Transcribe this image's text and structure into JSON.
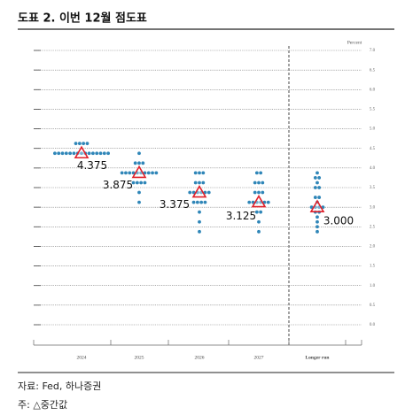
{
  "header": {
    "title": "도표 2. 이번 12월 점도표"
  },
  "chart_data": {
    "type": "dot",
    "y_label": "Percent",
    "categories": [
      "2024",
      "2025",
      "2026",
      "2027",
      "Longer run"
    ],
    "dots": [
      [
        {
          "rate": 4.625,
          "count": 4
        },
        {
          "rate": 4.375,
          "count": 15
        }
      ],
      [
        {
          "rate": 4.375,
          "count": 1
        },
        {
          "rate": 4.125,
          "count": 3
        },
        {
          "rate": 3.875,
          "count": 10
        },
        {
          "rate": 3.625,
          "count": 4
        },
        {
          "rate": 3.375,
          "count": 1
        },
        {
          "rate": 3.125,
          "count": 1
        }
      ],
      [
        {
          "rate": 3.875,
          "count": 3
        },
        {
          "rate": 3.625,
          "count": 3
        },
        {
          "rate": 3.375,
          "count": 6
        },
        {
          "rate": 3.125,
          "count": 4
        },
        {
          "rate": 2.875,
          "count": 1
        },
        {
          "rate": 2.625,
          "count": 1
        },
        {
          "rate": 2.375,
          "count": 1
        }
      ],
      [
        {
          "rate": 3.875,
          "count": 2
        },
        {
          "rate": 3.625,
          "count": 3
        },
        {
          "rate": 3.375,
          "count": 3
        },
        {
          "rate": 3.125,
          "count": 6
        },
        {
          "rate": 2.875,
          "count": 2
        },
        {
          "rate": 2.625,
          "count": 1
        },
        {
          "rate": 2.375,
          "count": 1
        }
      ],
      [
        {
          "rate": 3.875,
          "count": 1
        },
        {
          "rate": 3.75,
          "count": 2
        },
        {
          "rate": 3.625,
          "count": 1
        },
        {
          "rate": 3.5,
          "count": 2
        },
        {
          "rate": 3.25,
          "count": 2
        },
        {
          "rate": 3.125,
          "count": 1
        },
        {
          "rate": 3.0,
          "count": 4
        },
        {
          "rate": 2.875,
          "count": 2
        },
        {
          "rate": 2.75,
          "count": 1
        },
        {
          "rate": 2.625,
          "count": 1
        },
        {
          "rate": 2.5,
          "count": 1
        },
        {
          "rate": 2.375,
          "count": 1
        }
      ]
    ],
    "values": [
      4.375,
      3.875,
      3.375,
      3.125,
      3.0
    ],
    "value_labels": [
      "4.375",
      "3.875",
      "3.375",
      "3.125",
      "3.000"
    ],
    "dot_color": "#2f86b8",
    "median_color": "#e0202a",
    "ylim": [
      0,
      7
    ],
    "yticks": [
      {
        "value": 0,
        "label": "0.0"
      },
      {
        "value": 0.5,
        "label": "0.5"
      },
      {
        "value": 1,
        "label": "1.0"
      },
      {
        "value": 1.5,
        "label": "1.5"
      },
      {
        "value": 2,
        "label": "2.0"
      },
      {
        "value": 2.5,
        "label": "2.5"
      },
      {
        "value": 3,
        "label": "3.0"
      },
      {
        "value": 3.5,
        "label": "3.5"
      },
      {
        "value": 4,
        "label": "4.0"
      },
      {
        "value": 4.5,
        "label": "4.5"
      },
      {
        "value": 5,
        "label": "5.0"
      },
      {
        "value": 5.5,
        "label": "5.5"
      },
      {
        "value": 6,
        "label": "6.0"
      },
      {
        "value": 6.5,
        "label": "6.5"
      },
      {
        "value": 7,
        "label": "7.0"
      }
    ],
    "grid": true
  },
  "footer": {
    "source": "자료: Fed, 하나증권",
    "note": "주: △중간값"
  }
}
